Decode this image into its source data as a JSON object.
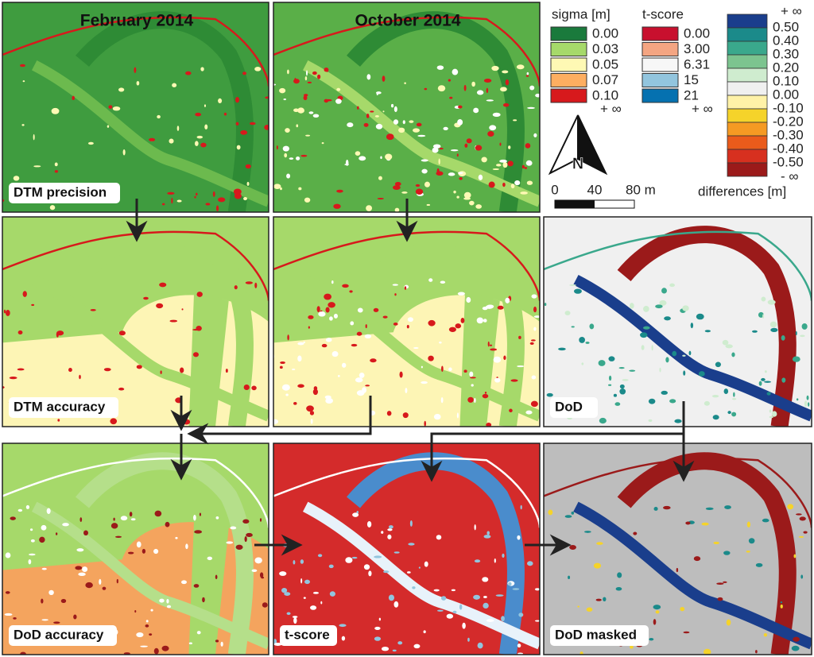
{
  "columns": [
    "February 2014",
    "October 2014"
  ],
  "panels": [
    "DTM precision",
    "DTM accuracy",
    "DoD",
    "DoD accuracy",
    "t-score",
    "DoD masked"
  ],
  "legends": {
    "sigma": {
      "title": "sigma [m]",
      "labels": [
        "0.00",
        "0.03",
        "0.05",
        "0.07",
        "0.10"
      ],
      "overflow": "+ ∞"
    },
    "t_score": {
      "title": "t-score",
      "labels": [
        "0.00",
        "3.00",
        "6.31",
        "15",
        "21"
      ],
      "overflow": "+ ∞"
    },
    "differences": {
      "title": "differences [m]",
      "top": "+ ∞",
      "labels": [
        "0.50",
        "0.40",
        "0.30",
        "0.20",
        "0.10",
        "0.00",
        "-0.10",
        "-0.20",
        "-0.30",
        "-0.40",
        "-0.50"
      ],
      "bottom": "- ∞"
    }
  },
  "north": "N",
  "scale": {
    "labels": [
      "0",
      "40",
      "80 m"
    ]
  }
}
